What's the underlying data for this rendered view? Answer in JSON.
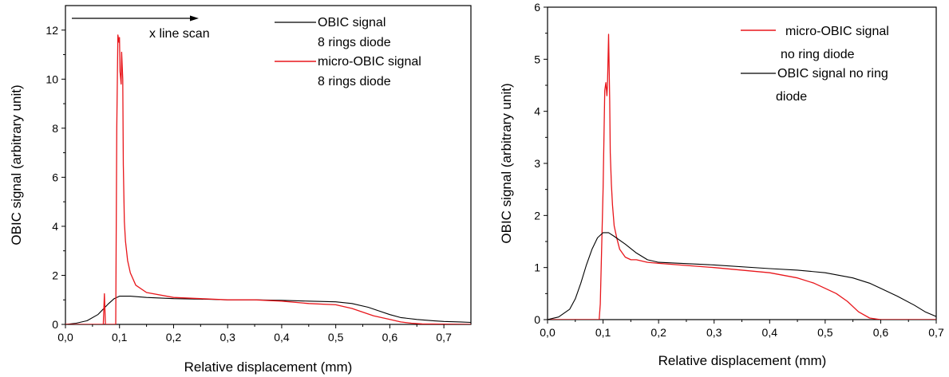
{
  "chart_data": [
    {
      "type": "line",
      "xlabel": "Relative displacement (mm)",
      "ylabel": "OBIC signal (arbitrary unit)",
      "xlim": [
        0,
        0.75
      ],
      "ylim": [
        0,
        13
      ],
      "xticks": [
        0,
        0.1,
        0.2,
        0.3,
        0.4,
        0.5,
        0.6,
        0.7
      ],
      "xtick_labels": [
        "0,0",
        "0,1",
        "0,2",
        "0,3",
        "0,4",
        "0,5",
        "0,6",
        "0,7"
      ],
      "yticks": [
        0,
        2,
        4,
        6,
        8,
        10,
        12
      ],
      "ytick_labels": [
        "0",
        "2",
        "4",
        "6",
        "8",
        "10",
        "12"
      ],
      "legend_position": "top-right",
      "annotation": "x line scan",
      "series": [
        {
          "name": "OBIC signal 8 rings diode",
          "legend_lines": [
            "OBIC signal",
            "8 rings diode"
          ],
          "color": "#000000",
          "x": [
            0,
            0.02,
            0.04,
            0.06,
            0.08,
            0.09,
            0.1,
            0.12,
            0.15,
            0.2,
            0.25,
            0.3,
            0.35,
            0.4,
            0.45,
            0.5,
            0.53,
            0.56,
            0.58,
            0.6,
            0.62,
            0.65,
            0.68,
            0.7,
            0.73,
            0.75
          ],
          "y": [
            0,
            0.05,
            0.15,
            0.4,
            0.85,
            1.05,
            1.15,
            1.15,
            1.1,
            1.05,
            1.03,
            1.0,
            1.0,
            0.98,
            0.95,
            0.92,
            0.85,
            0.7,
            0.55,
            0.4,
            0.28,
            0.2,
            0.15,
            0.12,
            0.1,
            0.08
          ]
        },
        {
          "name": "micro-OBIC signal 8 rings diode",
          "legend_lines": [
            "micro-OBIC signal",
            "8 rings diode"
          ],
          "color": "#e8161b",
          "x": [
            0,
            0.07,
            0.072,
            0.074,
            0.077,
            0.093,
            0.095,
            0.097,
            0.099,
            0.1,
            0.101,
            0.103,
            0.104,
            0.106,
            0.107,
            0.109,
            0.111,
            0.115,
            0.12,
            0.13,
            0.15,
            0.2,
            0.25,
            0.3,
            0.35,
            0.4,
            0.45,
            0.5,
            0.53,
            0.55,
            0.57,
            0.6,
            0.62,
            0.64,
            0.66,
            0.75
          ],
          "y": [
            0,
            0,
            1.25,
            0,
            0,
            0,
            8.0,
            11.8,
            11.5,
            11.7,
            10.3,
            9.8,
            11.1,
            10.0,
            6.5,
            4.2,
            3.4,
            2.6,
            2.1,
            1.6,
            1.3,
            1.1,
            1.05,
            1.0,
            1.0,
            0.95,
            0.85,
            0.8,
            0.65,
            0.5,
            0.35,
            0.2,
            0.1,
            0.05,
            0.02,
            0
          ]
        }
      ]
    },
    {
      "type": "line",
      "xlabel": "Relative displacement (mm)",
      "ylabel": "OBIC signal (arbitrary unit)",
      "xlim": [
        0,
        0.7
      ],
      "ylim": [
        0,
        6
      ],
      "xticks": [
        0,
        0.1,
        0.2,
        0.3,
        0.4,
        0.5,
        0.6,
        0.7
      ],
      "xtick_labels": [
        "0,0",
        "0,1",
        "0,2",
        "0,3",
        "0,4",
        "0,5",
        "0,6",
        "0,7"
      ],
      "yticks": [
        0,
        1,
        2,
        3,
        4,
        5,
        6
      ],
      "ytick_labels": [
        "0",
        "1",
        "2",
        "3",
        "4",
        "5",
        "6"
      ],
      "legend_position": "top-right",
      "series": [
        {
          "name": "micro-OBIC signal no ring diode",
          "legend_lines": [
            "micro-OBIC signal",
            "no ring diode"
          ],
          "color": "#e8161b",
          "x": [
            0,
            0.093,
            0.095,
            0.1,
            0.103,
            0.105,
            0.107,
            0.108,
            0.11,
            0.112,
            0.113,
            0.115,
            0.117,
            0.12,
            0.125,
            0.13,
            0.14,
            0.15,
            0.16,
            0.18,
            0.2,
            0.3,
            0.4,
            0.45,
            0.48,
            0.5,
            0.52,
            0.54,
            0.56,
            0.58,
            0.6,
            0.7
          ],
          "y": [
            0,
            0,
            0.3,
            2.5,
            4.4,
            4.55,
            4.3,
            4.5,
            5.48,
            4.2,
            3.2,
            2.6,
            2.2,
            1.8,
            1.55,
            1.35,
            1.2,
            1.15,
            1.15,
            1.1,
            1.08,
            1.0,
            0.9,
            0.8,
            0.7,
            0.6,
            0.5,
            0.35,
            0.15,
            0.03,
            0,
            0
          ]
        },
        {
          "name": "OBIC signal no ring diode",
          "legend_lines": [
            "OBIC signal no ring",
            "diode"
          ],
          "color": "#000000",
          "x": [
            0,
            0.02,
            0.04,
            0.05,
            0.06,
            0.07,
            0.08,
            0.09,
            0.1,
            0.11,
            0.12,
            0.14,
            0.16,
            0.18,
            0.2,
            0.3,
            0.4,
            0.45,
            0.5,
            0.55,
            0.58,
            0.6,
            0.63,
            0.66,
            0.68,
            0.7
          ],
          "y": [
            0,
            0.05,
            0.2,
            0.4,
            0.7,
            1.05,
            1.35,
            1.57,
            1.67,
            1.67,
            1.6,
            1.45,
            1.28,
            1.15,
            1.1,
            1.05,
            0.98,
            0.95,
            0.9,
            0.8,
            0.7,
            0.6,
            0.45,
            0.28,
            0.15,
            0.06
          ]
        }
      ]
    }
  ]
}
